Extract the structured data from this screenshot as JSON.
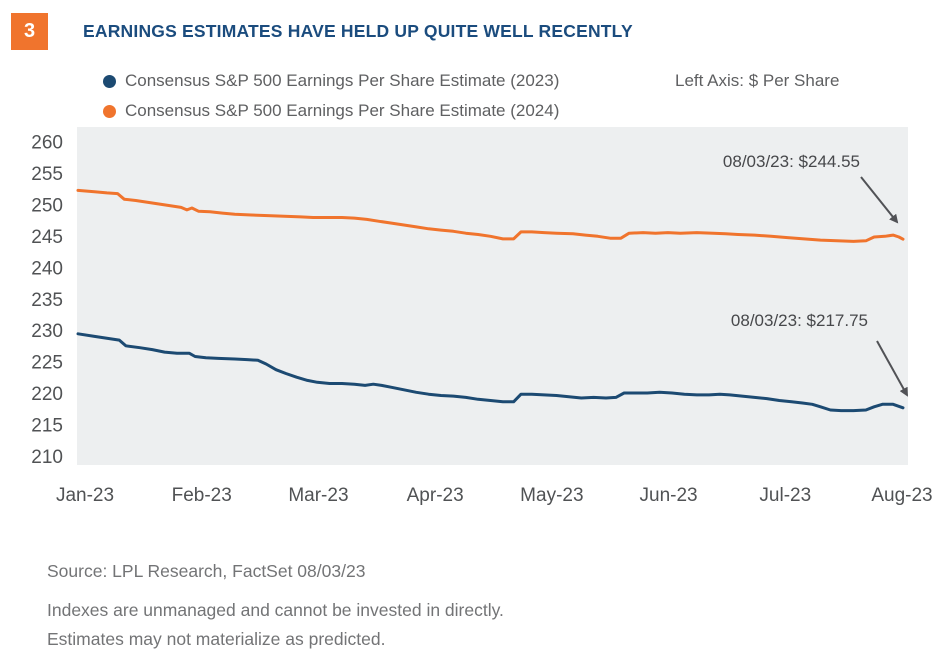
{
  "figure_number": "3",
  "title": "EARNINGS ESTIMATES HAVE HELD UP QUITE WELL RECENTLY",
  "axis_note": "Left Axis: $ Per Share",
  "legend": [
    {
      "label": "Consensus S&P 500 Earnings Per Share Estimate (2023)",
      "color": "#1C4A72"
    },
    {
      "label": "Consensus S&P 500 Earnings Per Share Estimate (2024)",
      "color": "#F0742D"
    }
  ],
  "annotations": [
    {
      "text": "08/03/23: $244.55",
      "series": "Consensus S&P 500 Earnings Per Share Estimate (2024)"
    },
    {
      "text": "08/03/23: $217.75",
      "series": "Consensus S&P 500 Earnings Per Share Estimate (2023)"
    }
  ],
  "source": "Source: LPL Research, FactSet  08/03/23",
  "disclaimer": {
    "line1": "Indexes are unmanaged and cannot be invested in directly.",
    "line2": "Estimates may not materialize as predicted."
  },
  "colors": {
    "accent_orange": "#F0742D",
    "accent_navy": "#1C4A72",
    "title_navy": "#1B4C7E",
    "axis_text": "#505254",
    "legend_text": "#5F6062",
    "annotation_text": "#47484B",
    "arrow": "#515256",
    "plot_background": "#EDEFF0",
    "muted_text": "#737476"
  },
  "chart_data": {
    "type": "line",
    "title": "EARNINGS ESTIMATES HAVE HELD UP QUITE WELL RECENTLY",
    "left_axis_label": "Left Axis: $ Per Share",
    "xlabel": "",
    "ylabel": "$ Per Share",
    "ylim": [
      210,
      260
    ],
    "y_ticks": [
      260,
      255,
      250,
      245,
      240,
      235,
      230,
      225,
      220,
      215,
      210
    ],
    "x_ticks": [
      "Jan-23",
      "Feb-23",
      "Mar-23",
      "Apr-23",
      "May-23",
      "Jun-23",
      "Jul-23",
      "Aug-23"
    ],
    "x_unit": "fraction of axis span from Jan-23 (0) to Aug-23 (1)",
    "grid": false,
    "legend_position": "top-left",
    "plot_background": "#EDEFF0",
    "series": [
      {
        "name": "Consensus S&P 500 Earnings Per Share Estimate (2023)",
        "color": "#1C4A72",
        "end_date": "08/03/23",
        "end_value": 217.75,
        "points": [
          [
            0.0,
            229.5
          ],
          [
            0.02,
            229.1
          ],
          [
            0.04,
            228.7
          ],
          [
            0.05,
            228.5
          ],
          [
            0.058,
            227.6
          ],
          [
            0.075,
            227.3
          ],
          [
            0.09,
            227.0
          ],
          [
            0.105,
            226.6
          ],
          [
            0.12,
            226.4
          ],
          [
            0.135,
            226.4
          ],
          [
            0.142,
            225.9
          ],
          [
            0.155,
            225.7
          ],
          [
            0.17,
            225.6
          ],
          [
            0.19,
            225.5
          ],
          [
            0.205,
            225.4
          ],
          [
            0.218,
            225.3
          ],
          [
            0.228,
            224.7
          ],
          [
            0.24,
            223.8
          ],
          [
            0.252,
            223.2
          ],
          [
            0.265,
            222.6
          ],
          [
            0.278,
            222.1
          ],
          [
            0.29,
            221.8
          ],
          [
            0.305,
            221.6
          ],
          [
            0.32,
            221.6
          ],
          [
            0.335,
            221.5
          ],
          [
            0.348,
            221.3
          ],
          [
            0.358,
            221.5
          ],
          [
            0.368,
            221.3
          ],
          [
            0.38,
            221.0
          ],
          [
            0.395,
            220.6
          ],
          [
            0.41,
            220.2
          ],
          [
            0.425,
            219.9
          ],
          [
            0.44,
            219.7
          ],
          [
            0.455,
            219.6
          ],
          [
            0.47,
            219.4
          ],
          [
            0.485,
            219.1
          ],
          [
            0.5,
            218.9
          ],
          [
            0.515,
            218.7
          ],
          [
            0.528,
            218.7
          ],
          [
            0.537,
            219.9
          ],
          [
            0.55,
            219.9
          ],
          [
            0.565,
            219.8
          ],
          [
            0.58,
            219.7
          ],
          [
            0.595,
            219.5
          ],
          [
            0.61,
            219.3
          ],
          [
            0.625,
            219.4
          ],
          [
            0.64,
            219.3
          ],
          [
            0.652,
            219.4
          ],
          [
            0.662,
            220.1
          ],
          [
            0.675,
            220.1
          ],
          [
            0.69,
            220.1
          ],
          [
            0.705,
            220.2
          ],
          [
            0.72,
            220.1
          ],
          [
            0.735,
            219.9
          ],
          [
            0.75,
            219.8
          ],
          [
            0.765,
            219.8
          ],
          [
            0.778,
            219.9
          ],
          [
            0.79,
            219.8
          ],
          [
            0.805,
            219.6
          ],
          [
            0.82,
            219.4
          ],
          [
            0.835,
            219.2
          ],
          [
            0.85,
            218.9
          ],
          [
            0.865,
            218.7
          ],
          [
            0.878,
            218.5
          ],
          [
            0.89,
            218.3
          ],
          [
            0.9,
            217.9
          ],
          [
            0.912,
            217.4
          ],
          [
            0.925,
            217.3
          ],
          [
            0.94,
            217.3
          ],
          [
            0.955,
            217.4
          ],
          [
            0.965,
            217.9
          ],
          [
            0.975,
            218.3
          ],
          [
            0.988,
            218.3
          ],
          [
            1.0,
            217.75
          ]
        ]
      },
      {
        "name": "Consensus S&P 500 Earnings Per Share Estimate (2024)",
        "color": "#F0742D",
        "end_date": "08/03/23",
        "end_value": 244.55,
        "points": [
          [
            0.0,
            252.3
          ],
          [
            0.02,
            252.1
          ],
          [
            0.035,
            251.9
          ],
          [
            0.048,
            251.8
          ],
          [
            0.056,
            250.9
          ],
          [
            0.07,
            250.7
          ],
          [
            0.09,
            250.3
          ],
          [
            0.11,
            249.9
          ],
          [
            0.125,
            249.6
          ],
          [
            0.132,
            249.2
          ],
          [
            0.138,
            249.5
          ],
          [
            0.146,
            249.0
          ],
          [
            0.16,
            248.9
          ],
          [
            0.175,
            248.7
          ],
          [
            0.19,
            248.5
          ],
          [
            0.21,
            248.4
          ],
          [
            0.23,
            248.3
          ],
          [
            0.25,
            248.2
          ],
          [
            0.27,
            248.1
          ],
          [
            0.285,
            248.0
          ],
          [
            0.3,
            248.0
          ],
          [
            0.32,
            248.0
          ],
          [
            0.335,
            247.9
          ],
          [
            0.35,
            247.7
          ],
          [
            0.365,
            247.4
          ],
          [
            0.38,
            247.1
          ],
          [
            0.395,
            246.8
          ],
          [
            0.41,
            246.5
          ],
          [
            0.425,
            246.2
          ],
          [
            0.44,
            246.0
          ],
          [
            0.455,
            245.8
          ],
          [
            0.47,
            245.5
          ],
          [
            0.485,
            245.3
          ],
          [
            0.5,
            245.0
          ],
          [
            0.515,
            244.6
          ],
          [
            0.528,
            244.6
          ],
          [
            0.537,
            245.7
          ],
          [
            0.55,
            245.7
          ],
          [
            0.565,
            245.6
          ],
          [
            0.58,
            245.5
          ],
          [
            0.6,
            245.4
          ],
          [
            0.615,
            245.2
          ],
          [
            0.63,
            245.0
          ],
          [
            0.645,
            244.7
          ],
          [
            0.658,
            244.7
          ],
          [
            0.668,
            245.5
          ],
          [
            0.685,
            245.6
          ],
          [
            0.7,
            245.5
          ],
          [
            0.715,
            245.6
          ],
          [
            0.73,
            245.5
          ],
          [
            0.75,
            245.6
          ],
          [
            0.77,
            245.5
          ],
          [
            0.785,
            245.4
          ],
          [
            0.8,
            245.3
          ],
          [
            0.82,
            245.2
          ],
          [
            0.84,
            245.0
          ],
          [
            0.86,
            244.8
          ],
          [
            0.88,
            244.6
          ],
          [
            0.9,
            244.4
          ],
          [
            0.92,
            244.3
          ],
          [
            0.94,
            244.2
          ],
          [
            0.955,
            244.3
          ],
          [
            0.965,
            244.9
          ],
          [
            0.978,
            245.0
          ],
          [
            0.988,
            245.2
          ],
          [
            0.995,
            244.9
          ],
          [
            1.0,
            244.55
          ]
        ]
      }
    ],
    "annotations": [
      {
        "text": "08/03/23: $244.55"
      },
      {
        "text": "08/03/23: $217.75"
      }
    ]
  }
}
